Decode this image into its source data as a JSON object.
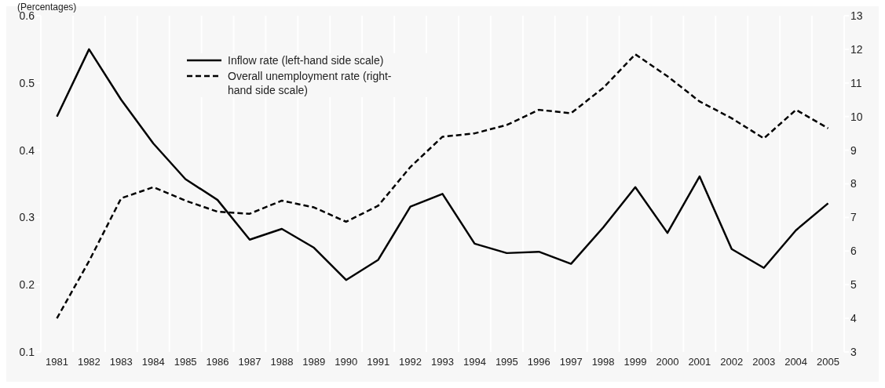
{
  "chart_data": {
    "type": "line",
    "ylabel": "(Percentages)",
    "categories": [
      "1981",
      "1982",
      "1983",
      "1984",
      "1985",
      "1986",
      "1987",
      "1988",
      "1989",
      "1990",
      "1991",
      "1992",
      "1993",
      "1994",
      "1995",
      "1996",
      "1997",
      "1998",
      "1999",
      "2000",
      "2001",
      "2002",
      "2003",
      "2004",
      "2005"
    ],
    "series": [
      {
        "name": "Inflow rate (left-hand side scale)",
        "color": "#000000",
        "line_style": "solid",
        "values": [
          0.45,
          0.55,
          0.475,
          0.41,
          0.357,
          0.326,
          0.267,
          0.283,
          0.255,
          0.207,
          0.237,
          0.316,
          0.335,
          0.261,
          0.247,
          0.249,
          0.231,
          0.285,
          0.345,
          0.277,
          0.361,
          0.253,
          0.225,
          0.281,
          0.321
        ]
      },
      {
        "name": "Overall unemployment rate (right-hand side scale)",
        "color": "#000000",
        "line_style": "dashed",
        "axis": "y2",
        "values": [
          4.0,
          5.7,
          7.57,
          7.9,
          7.5,
          7.17,
          7.11,
          7.5,
          7.3,
          6.87,
          7.35,
          8.5,
          9.4,
          9.5,
          9.75,
          10.2,
          10.1,
          10.85,
          11.85,
          11.2,
          10.45,
          9.95,
          9.35,
          10.2,
          9.65
        ]
      }
    ],
    "ylim": [
      0.1,
      0.6
    ],
    "yticks": [
      0.1,
      0.2,
      0.3,
      0.4,
      0.5,
      0.6
    ],
    "y2lim": [
      3,
      13
    ],
    "y2ticks": [
      3,
      4,
      5,
      6,
      7,
      8,
      9,
      10,
      11,
      12,
      13
    ],
    "grid": "x",
    "legend": "top",
    "marker": "none"
  }
}
